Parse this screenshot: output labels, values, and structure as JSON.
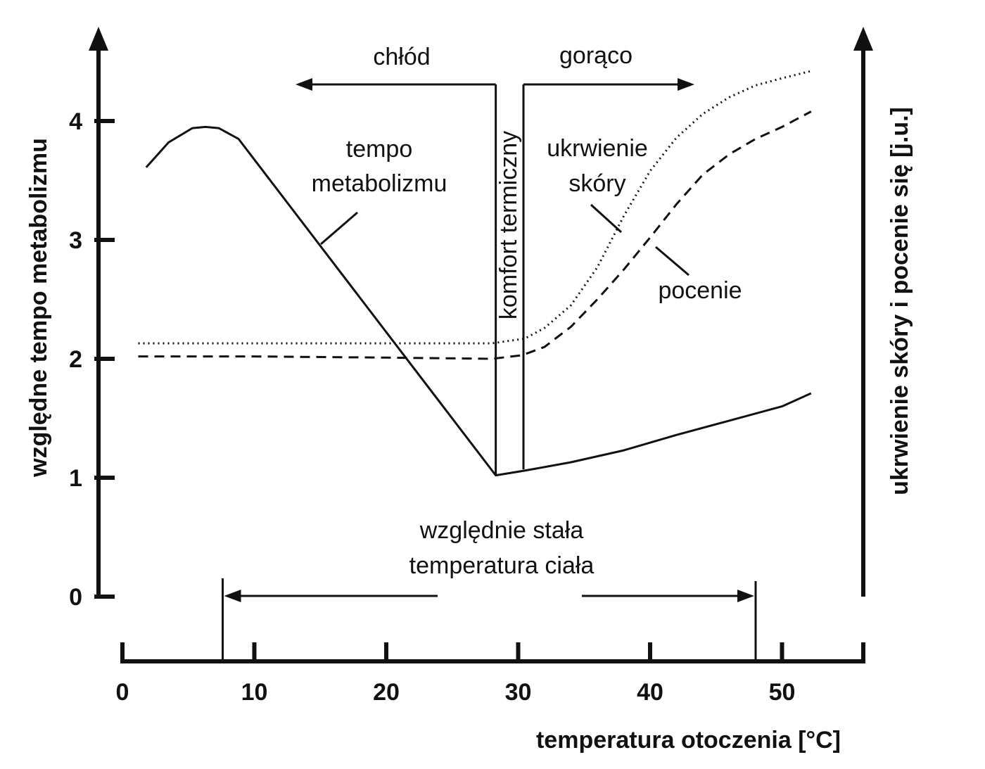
{
  "chart_data": {
    "type": "line",
    "x_axis": {
      "label": "temperatura otoczenia [°C]",
      "range": [
        0,
        56
      ],
      "ticks": [
        "0",
        "10",
        "20",
        "30",
        "40",
        "50"
      ]
    },
    "y_left_axis": {
      "label": "względne tempo metabolizmu",
      "range": [
        0,
        4.8
      ],
      "ticks": [
        "0",
        "1",
        "2",
        "3",
        "4"
      ]
    },
    "y_right_axis": {
      "label": "ukrwienie skóry i pocenie się [j.u.]"
    },
    "series": [
      {
        "name": "tempo metabolizmu",
        "style": "solid",
        "points": [
          [
            1.8,
            3.61
          ],
          [
            3.5,
            3.82
          ],
          [
            5.3,
            3.94
          ],
          [
            6.3,
            3.95
          ],
          [
            7.3,
            3.94
          ],
          [
            8.8,
            3.85
          ],
          [
            28.3,
            1.02
          ],
          [
            30.5,
            1.06
          ],
          [
            34,
            1.13
          ],
          [
            38,
            1.23
          ],
          [
            42,
            1.36
          ],
          [
            46,
            1.48
          ],
          [
            50,
            1.6
          ],
          [
            52.2,
            1.71
          ]
        ]
      },
      {
        "name": "ukrwienie skóry",
        "style": "dotted",
        "points": [
          [
            1.2,
            2.13
          ],
          [
            10,
            2.13
          ],
          [
            20,
            2.13
          ],
          [
            28,
            2.13
          ],
          [
            30.5,
            2.17
          ],
          [
            32,
            2.26
          ],
          [
            34,
            2.45
          ],
          [
            36,
            2.77
          ],
          [
            38,
            3.2
          ],
          [
            40,
            3.58
          ],
          [
            42,
            3.86
          ],
          [
            44,
            4.06
          ],
          [
            46,
            4.2
          ],
          [
            48,
            4.3
          ],
          [
            50,
            4.36
          ],
          [
            52.2,
            4.42
          ]
        ]
      },
      {
        "name": "pocenie",
        "style": "dashed",
        "points": [
          [
            1.2,
            2.02
          ],
          [
            10,
            2.02
          ],
          [
            20,
            2.01
          ],
          [
            28,
            2.0
          ],
          [
            30.3,
            2.03
          ],
          [
            32,
            2.1
          ],
          [
            34,
            2.27
          ],
          [
            36,
            2.5
          ],
          [
            38,
            2.75
          ],
          [
            40,
            3.02
          ],
          [
            42,
            3.3
          ],
          [
            44,
            3.55
          ],
          [
            46,
            3.72
          ],
          [
            48,
            3.85
          ],
          [
            50,
            3.95
          ],
          [
            52.2,
            4.08
          ]
        ]
      }
    ],
    "comfort_zone": {
      "x_start": 28.3,
      "x_end": 30.4,
      "label": "komfort termiczny"
    },
    "region_labels": {
      "cold": "chłód",
      "hot": "gorąco"
    },
    "annotations": {
      "metabolism": [
        "tempo",
        "metabolizmu"
      ],
      "skin_blood_flow": [
        "ukrwienie",
        "skóry"
      ],
      "sweating": "pocenie",
      "constant_temp": [
        "względnie stała",
        "temperatura ciała"
      ]
    },
    "constant_temp_range": [
      7.6,
      48
    ],
    "grid": false,
    "legend": "none"
  }
}
